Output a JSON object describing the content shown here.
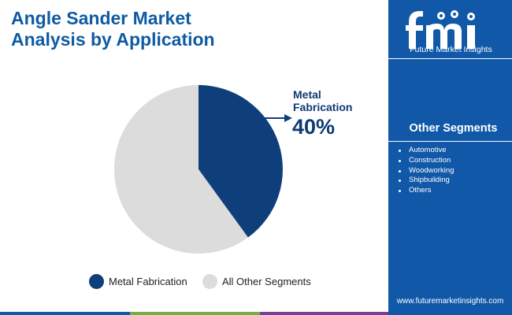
{
  "header": {
    "title_line1": "Angle Sander Market",
    "title_line2": "Analysis by Application"
  },
  "brand": {
    "name": "Future Market Insights",
    "website": "www.futuremarketinsights.com"
  },
  "sidebar": {
    "heading": "Other Segments",
    "items": [
      "Automotive",
      "Construction",
      "Woodworking",
      "Shipbuilding",
      "Others"
    ]
  },
  "colors": {
    "title": "#0e5ba3",
    "sidebar_bg": "#1158a8",
    "metal_fabrication": "#0f3f7b",
    "other_segments": "#dcdcdc",
    "footer": [
      "#1158a8",
      "#76b043",
      "#7b3f98",
      "#1158a8"
    ]
  },
  "chart_data": {
    "type": "pie",
    "title": "Angle Sander Market Analysis by Application",
    "slices": [
      {
        "label": "Metal Fabrication",
        "value": 40,
        "color": "#0f3f7b"
      },
      {
        "label": "All Other Segments",
        "value": 60,
        "color": "#dcdcdc"
      }
    ],
    "callout": {
      "label_line1": "Metal",
      "label_line2": "Fabrication",
      "value_text": "40%"
    },
    "legend": [
      "Metal Fabrication",
      "All Other Segments"
    ],
    "legend_position": "bottom"
  }
}
